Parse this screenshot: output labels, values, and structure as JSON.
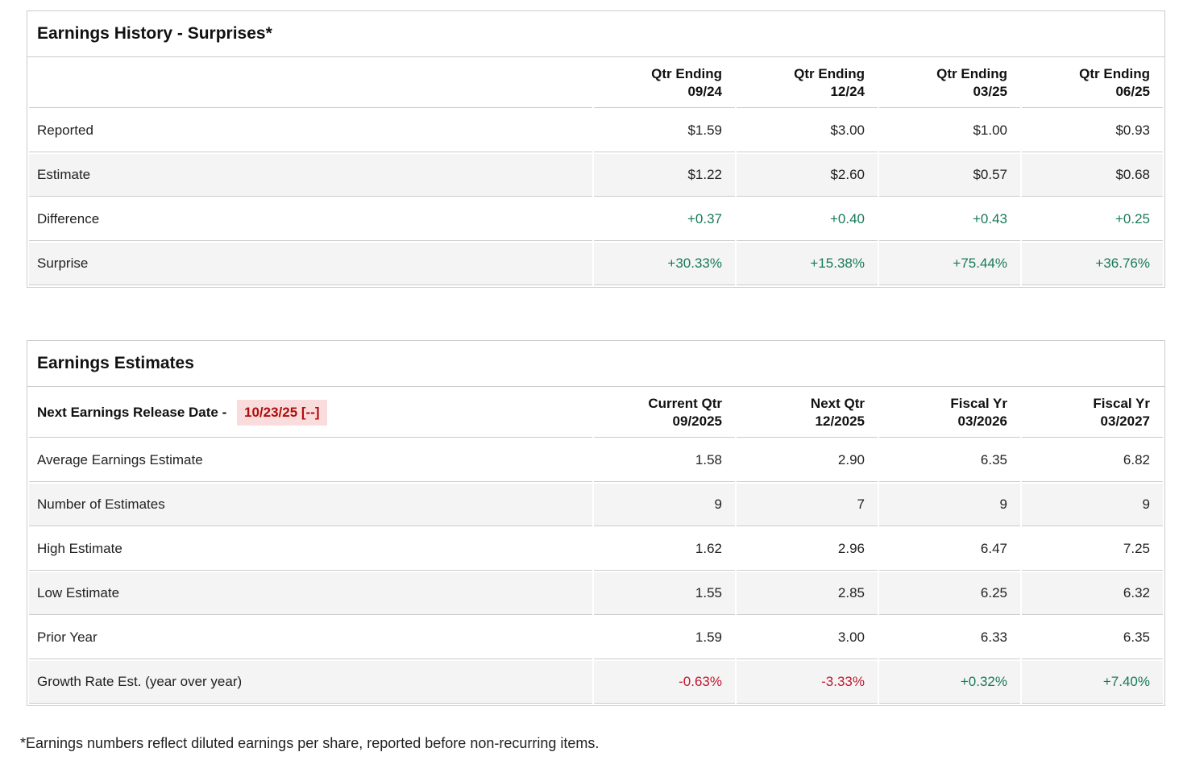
{
  "colors": {
    "positive_green": "#187a56",
    "negative_red": "#c21732",
    "release_date_red": "#ae0e0e",
    "release_date_highlight_bg": "#fbdcdc",
    "alt_row_bg": "#f4f4f4",
    "table_border": "#cccccc"
  },
  "history_table": {
    "title": "Earnings History - Surprises*",
    "columns": [
      {
        "line1": "Qtr Ending",
        "line2": "09/24"
      },
      {
        "line1": "Qtr Ending",
        "line2": "12/24"
      },
      {
        "line1": "Qtr Ending",
        "line2": "03/25"
      },
      {
        "line1": "Qtr Ending",
        "line2": "06/25"
      }
    ],
    "rows": [
      {
        "label": "Reported",
        "values": [
          "$1.59",
          "$3.00",
          "$1.00",
          "$0.93"
        ]
      },
      {
        "label": "Estimate",
        "values": [
          "$1.22",
          "$2.60",
          "$0.57",
          "$0.68"
        ]
      },
      {
        "label": "Difference",
        "values": [
          "+0.37",
          "+0.40",
          "+0.43",
          "+0.25"
        ]
      },
      {
        "label": "Surprise",
        "values": [
          "+30.33%",
          "+15.38%",
          "+75.44%",
          "+36.76%"
        ]
      }
    ]
  },
  "estimates_table": {
    "title": "Earnings Estimates",
    "release_label": "Next Earnings Release Date -",
    "release_date": "10/23/25 [--]",
    "columns": [
      {
        "line1": "Current Qtr",
        "line2": "09/2025"
      },
      {
        "line1": "Next Qtr",
        "line2": "12/2025"
      },
      {
        "line1": "Fiscal Yr",
        "line2": "03/2026"
      },
      {
        "line1": "Fiscal Yr",
        "line2": "03/2027"
      }
    ],
    "rows": [
      {
        "label": "Average Earnings Estimate",
        "values": [
          "1.58",
          "2.90",
          "6.35",
          "6.82"
        ]
      },
      {
        "label": "Number of Estimates",
        "values": [
          "9",
          "7",
          "9",
          "9"
        ]
      },
      {
        "label": "High Estimate",
        "values": [
          "1.62",
          "2.96",
          "6.47",
          "7.25"
        ]
      },
      {
        "label": "Low Estimate",
        "values": [
          "1.55",
          "2.85",
          "6.25",
          "6.32"
        ]
      },
      {
        "label": "Prior Year",
        "values": [
          "1.59",
          "3.00",
          "6.33",
          "6.35"
        ]
      },
      {
        "label": "Growth Rate Est. (year over year)",
        "values": [
          "-0.63%",
          "-3.33%",
          "+0.32%",
          "+7.40%"
        ]
      }
    ]
  },
  "footnote": "*Earnings numbers reflect diluted earnings per share, reported before non-recurring items."
}
